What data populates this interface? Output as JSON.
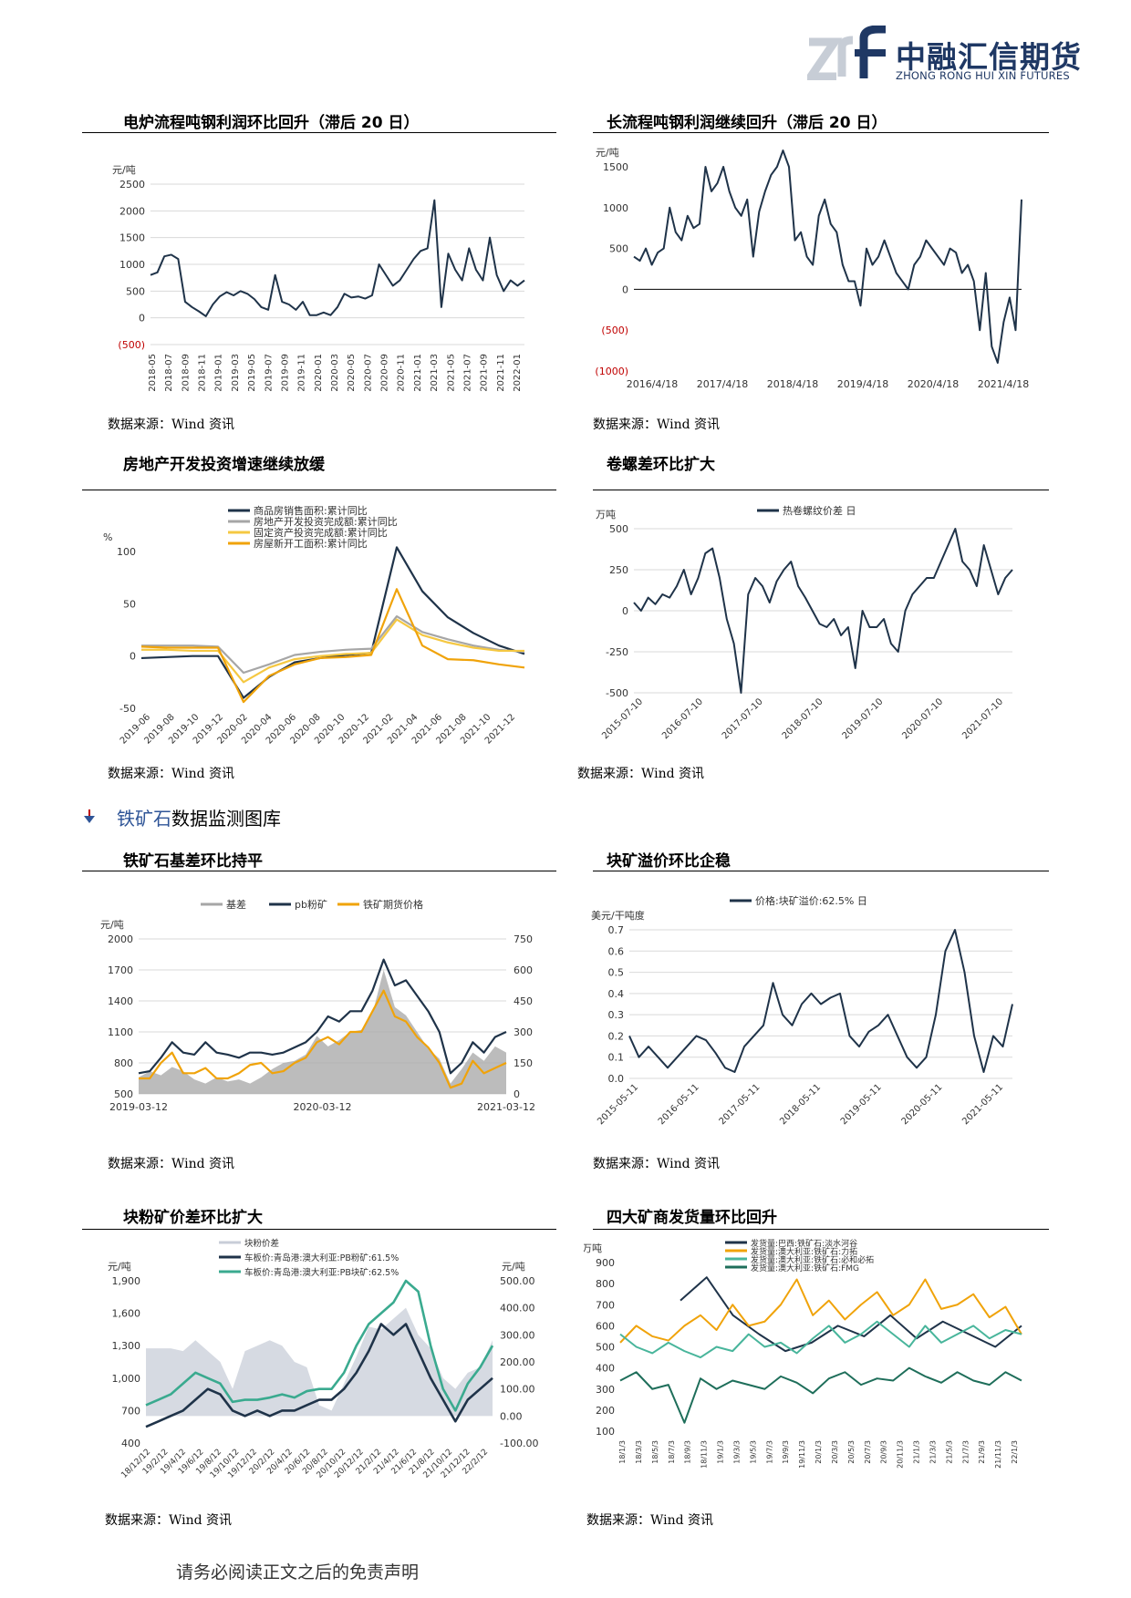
{
  "header": {
    "logo_cn": "中融汇信期货",
    "logo_en": "ZHONG RONG HUI XIN FUTURES",
    "logo_mark": "znf"
  },
  "section": {
    "arrow_icon": "down-arrow-icon",
    "highlight": "铁矿石",
    "title_rest": "数据监测图库"
  },
  "footer": {
    "text": "请务必阅读正文之后的免责声明"
  },
  "charts": [
    {
      "title": "电炉流程吨钢利润环比回升（滞后 20 日）",
      "source": "数据来源：Wind 资讯"
    },
    {
      "title": "长流程吨钢利润继续回升（滞后 20 日）",
      "source": "数据来源：Wind 资讯"
    },
    {
      "title": "房地产开发投资增速继续放缓",
      "source": "数据来源：Wind 资讯"
    },
    {
      "title": "卷螺差环比扩大",
      "source": "数据来源：Wind 资讯"
    },
    {
      "title": "铁矿石基差环比持平",
      "source": "数据来源：Wind 资讯"
    },
    {
      "title": "块矿溢价环比企稳",
      "source": "数据来源：Wind 资讯"
    },
    {
      "title": "块粉矿价差环比扩大",
      "source": "数据来源：Wind 资讯"
    },
    {
      "title": "四大矿商发货量环比回升",
      "source": "数据来源：Wind 资讯"
    }
  ],
  "colors": {
    "navy": "#1f3349",
    "orange": "#f0a30a",
    "gray": "#a6a6a6",
    "light_orange": "#f5c842",
    "teal": "#3aaa8f",
    "blue_logo": "#1f3864"
  },
  "chart_data": [
    {
      "type": "line",
      "ylabel": "元/吨",
      "yticks": [
        "2500",
        "2000",
        "1500",
        "1000",
        "500",
        "0",
        "(500)"
      ],
      "ylim": [
        -500,
        2500
      ],
      "xticks": [
        "2018-05",
        "2018-07",
        "2018-09",
        "2018-11",
        "2019-01",
        "2019-03",
        "2019-05",
        "2019-07",
        "2019-09",
        "2019-11",
        "2020-01",
        "2020-03",
        "2020-05",
        "2020-07",
        "2020-09",
        "2020-11",
        "2021-01",
        "2021-03",
        "2021-05",
        "2021-07",
        "2021-09",
        "2021-11",
        "2022-01"
      ],
      "series": [
        {
          "color": "#1f3349",
          "values": [
            800,
            850,
            1150,
            1180,
            1100,
            300,
            200,
            120,
            30,
            250,
            400,
            480,
            420,
            500,
            450,
            350,
            200,
            150,
            800,
            300,
            250,
            150,
            300,
            50,
            50,
            100,
            50,
            200,
            450,
            380,
            400,
            360,
            420,
            1000,
            800,
            600,
            700,
            900,
            1100,
            1250,
            1300,
            2200,
            200,
            1200,
            900,
            700,
            1300,
            900,
            700,
            1500,
            800,
            500,
            700,
            600,
            700
          ]
        }
      ]
    },
    {
      "type": "line",
      "ylabel": "元/吨",
      "yticks": [
        "1500",
        "1000",
        "500",
        "0",
        "(500)",
        "(1000)"
      ],
      "ylim": [
        -1000,
        1500
      ],
      "xticks": [
        "2016/4/18",
        "2017/4/18",
        "2018/4/18",
        "2019/4/18",
        "2020/4/18",
        "2021/4/18"
      ],
      "series": [
        {
          "color": "#1f3349",
          "values": [
            400,
            350,
            500,
            300,
            450,
            500,
            1000,
            700,
            600,
            900,
            750,
            800,
            1500,
            1200,
            1300,
            1500,
            1200,
            1000,
            900,
            1100,
            400,
            950,
            1200,
            1400,
            1500,
            1700,
            1500,
            600,
            700,
            400,
            300,
            900,
            1100,
            800,
            700,
            300,
            100,
            100,
            -200,
            500,
            300,
            400,
            600,
            400,
            200,
            100,
            0,
            300,
            400,
            600,
            500,
            400,
            300,
            500,
            450,
            200,
            300,
            100,
            -500,
            200,
            -700,
            -900,
            -400,
            -100,
            -500,
            1100
          ]
        }
      ]
    },
    {
      "type": "line",
      "ylabel": "%",
      "yticks": [
        "100",
        "50",
        "0",
        "-50"
      ],
      "ylim": [
        -50,
        100
      ],
      "xticks": [
        "2019-06",
        "2019-08",
        "2019-10",
        "2019-12",
        "2020-02",
        "2020-04",
        "2020-06",
        "2020-08",
        "2020-10",
        "2020-12",
        "2021-02",
        "2021-04",
        "2021-06",
        "2021-08",
        "2021-10",
        "2021-12"
      ],
      "series": [
        {
          "name": "商品房销售面积:累计同比",
          "color": "#1f3349",
          "values": [
            -2,
            -1,
            0,
            0,
            -40,
            -20,
            -6,
            -2,
            1,
            3,
            104,
            62,
            37,
            22,
            10,
            2
          ]
        },
        {
          "name": "房地产开发投资完成额:累计同比",
          "color": "#a6a6a6",
          "values": [
            10,
            10,
            10,
            9,
            -16,
            -8,
            1,
            4,
            6,
            7,
            38,
            23,
            16,
            10,
            6,
            4
          ]
        },
        {
          "name": "固定资产投资完成额:累计同比",
          "color": "#f5c842",
          "values": [
            6,
            6,
            5,
            5,
            -25,
            -11,
            -3,
            0,
            2,
            3,
            35,
            20,
            13,
            8,
            5,
            5
          ]
        },
        {
          "name": "房屋新开工面积:累计同比",
          "color": "#f0a30a",
          "values": [
            9,
            8,
            8,
            8,
            -44,
            -19,
            -8,
            -2,
            -1,
            1,
            64,
            10,
            -3,
            -4,
            -8,
            -11
          ]
        }
      ]
    },
    {
      "type": "line",
      "ylabel": "万吨",
      "yticks": [
        "500",
        "250",
        "0",
        "-250",
        "-500"
      ],
      "ylim": [
        -500,
        500
      ],
      "xticks": [
        "2015-07-10",
        "2016-07-10",
        "2017-07-10",
        "2018-07-10",
        "2019-07-10",
        "2020-07-10",
        "2021-07-10"
      ],
      "series": [
        {
          "name": "热卷螺纹价差 日",
          "color": "#1f3349",
          "values": [
            50,
            0,
            80,
            40,
            100,
            80,
            150,
            250,
            100,
            200,
            350,
            380,
            200,
            -50,
            -200,
            -500,
            100,
            200,
            150,
            50,
            180,
            250,
            300,
            150,
            80,
            0,
            -80,
            -100,
            -50,
            -150,
            -100,
            -350,
            0,
            -100,
            -100,
            -50,
            -200,
            -250,
            0,
            100,
            150,
            200,
            200,
            300,
            400,
            500,
            300,
            250,
            150,
            400,
            250,
            100,
            200,
            250
          ]
        }
      ]
    },
    {
      "type": "line",
      "yticks_left": [
        "2000",
        "1700",
        "1400",
        "1100",
        "800",
        "500"
      ],
      "ylabel_left": "元/吨",
      "yticks_right": [
        "750",
        "600",
        "450",
        "300",
        "150",
        "0"
      ],
      "ylim_left": [
        500,
        2000
      ],
      "ylim_right": [
        0,
        750
      ],
      "xticks": [
        "2019-03-12",
        "2020-03-12",
        "2021-03-12"
      ],
      "series": [
        {
          "name": "基差",
          "color": "#a6a6a6",
          "axis": "right",
          "values": [
            80,
            110,
            90,
            130,
            110,
            70,
            50,
            80,
            60,
            70,
            50,
            80,
            120,
            150,
            160,
            190,
            280,
            230,
            260,
            300,
            310,
            390,
            600,
            420,
            380,
            300,
            220,
            170,
            50,
            120,
            200,
            160,
            230,
            200
          ]
        },
        {
          "name": "pb粉矿",
          "color": "#1f3349",
          "axis": "left",
          "values": [
            700,
            720,
            850,
            1000,
            900,
            880,
            1000,
            900,
            880,
            850,
            900,
            900,
            880,
            900,
            950,
            1000,
            1100,
            1250,
            1200,
            1300,
            1300,
            1500,
            1800,
            1550,
            1600,
            1450,
            1300,
            1100,
            700,
            800,
            1000,
            900,
            1050,
            1100
          ]
        },
        {
          "name": "铁矿期货价格",
          "color": "#f0a30a",
          "axis": "left",
          "values": [
            650,
            650,
            800,
            900,
            700,
            700,
            750,
            650,
            650,
            700,
            780,
            800,
            700,
            720,
            800,
            850,
            1000,
            1050,
            980,
            1100,
            1100,
            1300,
            1500,
            1250,
            1200,
            1050,
            950,
            800,
            560,
            600,
            820,
            700,
            750,
            800
          ]
        }
      ]
    },
    {
      "type": "line",
      "ylabel": "美元/干吨度",
      "yticks": [
        "0.7",
        "0.6",
        "0.5",
        "0.4",
        "0.3",
        "0.2",
        "0.1",
        "0.0"
      ],
      "ylim": [
        0,
        0.7
      ],
      "xticks": [
        "2015-05-11",
        "2016-05-11",
        "2017-05-11",
        "2018-05-11",
        "2019-05-11",
        "2020-05-11",
        "2021-05-11"
      ],
      "series": [
        {
          "name": "价格:块矿溢价:62.5% 日",
          "color": "#1f3349",
          "values": [
            0.2,
            0.1,
            0.15,
            0.1,
            0.05,
            0.1,
            0.15,
            0.2,
            0.18,
            0.12,
            0.05,
            0.03,
            0.15,
            0.2,
            0.25,
            0.45,
            0.3,
            0.25,
            0.35,
            0.4,
            0.35,
            0.38,
            0.4,
            0.2,
            0.15,
            0.22,
            0.25,
            0.3,
            0.2,
            0.1,
            0.05,
            0.1,
            0.3,
            0.6,
            0.7,
            0.5,
            0.2,
            0.03,
            0.2,
            0.15,
            0.35
          ]
        }
      ]
    },
    {
      "type": "line",
      "yticks_left": [
        "1,900",
        "1,600",
        "1,300",
        "1,000",
        "700",
        "400"
      ],
      "ylabel_left": "元/吨",
      "yticks_right": [
        "500.00",
        "400.00",
        "300.00",
        "200.00",
        "100.00",
        "0.00",
        "-100.00"
      ],
      "ylabel_right": "元/吨",
      "ylim_left": [
        400,
        1900
      ],
      "ylim_right": [
        -100,
        500
      ],
      "xticks": [
        "18/12/12",
        "19/2/12",
        "19/4/12",
        "19/6/12",
        "19/8/12",
        "19/10/12",
        "19/12/12",
        "20/2/12",
        "20/4/12",
        "20/6/12",
        "20/8/12",
        "20/10/12",
        "20/12/12",
        "21/2/12",
        "21/4/12",
        "21/6/12",
        "21/8/12",
        "21/10/12",
        "21/12/12",
        "22/2/12"
      ],
      "series": [
        {
          "name": "块粉价差",
          "color": "#c8cdd8",
          "axis": "right",
          "values": [
            250,
            250,
            250,
            240,
            280,
            240,
            200,
            100,
            240,
            260,
            280,
            260,
            200,
            180,
            40,
            20,
            120,
            220,
            330,
            320,
            360,
            400,
            300,
            250,
            140,
            100,
            160,
            180,
            280
          ]
        },
        {
          "name": "车板价:青岛港:澳大利亚:PB粉矿:61.5%",
          "color": "#1f3349",
          "axis": "left",
          "values": [
            550,
            600,
            650,
            700,
            800,
            900,
            850,
            700,
            650,
            700,
            650,
            700,
            700,
            750,
            800,
            800,
            900,
            1050,
            1250,
            1500,
            1400,
            1500,
            1250,
            1000,
            800,
            600,
            800,
            900,
            1000
          ]
        },
        {
          "name": "车板价:青岛港:澳大利亚:PB块矿:62.5%",
          "color": "#3aaa8f",
          "axis": "left",
          "values": [
            750,
            800,
            850,
            950,
            1050,
            1000,
            950,
            780,
            800,
            800,
            820,
            850,
            820,
            880,
            900,
            900,
            1050,
            1300,
            1500,
            1600,
            1700,
            1900,
            1800,
            1300,
            900,
            700,
            950,
            1100,
            1300
          ]
        }
      ]
    },
    {
      "type": "line",
      "ylabel": "万吨",
      "yticks": [
        "900",
        "800",
        "700",
        "600",
        "500",
        "400",
        "300",
        "200",
        "100"
      ],
      "ylim": [
        100,
        900
      ],
      "xticks": [
        "18/1/3",
        "18/3/3",
        "18/5/3",
        "18/7/3",
        "18/9/3",
        "18/11/3",
        "19/1/3",
        "19/3/3",
        "19/5/3",
        "19/7/3",
        "19/9/3",
        "19/11/3",
        "20/1/3",
        "20/3/3",
        "20/5/3",
        "20/7/3",
        "20/9/3",
        "20/11/3",
        "21/1/3",
        "21/3/3",
        "21/5/3",
        "21/7/3",
        "21/9/3",
        "21/11/3",
        "22/1/3"
      ],
      "series": [
        {
          "name": "发货量:巴西:铁矿石:淡水河谷",
          "color": "#1f3349",
          "values": [
            720,
            830,
            650,
            560,
            480,
            520,
            600,
            550,
            650,
            540,
            620,
            560,
            500,
            600
          ]
        },
        {
          "name": "发货量:澳大利亚:铁矿石:力拓",
          "color": "#f0a30a",
          "values": [
            520,
            600,
            550,
            530,
            600,
            650,
            580,
            700,
            600,
            620,
            700,
            820,
            650,
            720,
            630,
            700,
            760,
            650,
            700,
            820,
            680,
            700,
            750,
            640,
            690,
            560
          ]
        },
        {
          "name": "发货量:澳大利亚:铁矿石:必和必拓",
          "color": "#48b59b",
          "values": [
            560,
            500,
            470,
            520,
            480,
            450,
            500,
            480,
            560,
            500,
            520,
            470,
            540,
            600,
            520,
            560,
            620,
            560,
            500,
            600,
            520,
            560,
            600,
            540,
            580,
            560
          ]
        },
        {
          "name": "发货量:澳大利亚:铁矿石:FMG",
          "color": "#1e6e5a",
          "values": [
            340,
            380,
            300,
            320,
            140,
            350,
            300,
            340,
            320,
            300,
            360,
            330,
            280,
            350,
            380,
            320,
            350,
            340,
            400,
            360,
            330,
            380,
            340,
            320,
            380,
            340
          ]
        }
      ]
    }
  ]
}
